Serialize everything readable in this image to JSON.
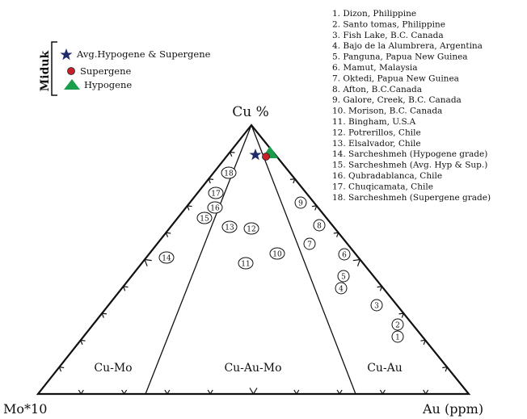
{
  "apex_labels": {
    "top": "Cu %",
    "bottom_left": "Mo*10",
    "bottom_right": "Au (ppm)"
  },
  "field_labels": [
    "Cu-Mo",
    "Cu-Au-Mo",
    "Cu-Au"
  ],
  "legend": {
    "title": "Miduk",
    "items": [
      {
        "label": "Avg.Hypogene & Supergene",
        "symbol": "star",
        "color": "#1f2a6b"
      },
      {
        "label": "Supergene",
        "symbol": "circle",
        "color": "#c8202a"
      },
      {
        "label": "Hypogene",
        "symbol": "triangle",
        "color": "#1a9e4b"
      }
    ]
  },
  "references": [
    "1. Dizon, Philippine",
    "2. Santo tomas, Philippine",
    "3. Fish Lake, B.C. Canada",
    "4. Bajo de la Alumbrera, Argentina",
    "5. Panguna, Papua New Guinea",
    "6. Mamut, Malaysia",
    "7. Oktedi, Papua New Guinea",
    "8. Afton, B.C.Canada",
    "9. Galore, Creek, B.C. Canada",
    "10. Morison, B.C. Canada",
    "11. Bingham, U.S.A",
    "12. Potrerillos, Chile",
    "13. Elsalvador, Chile",
    "14. Sarcheshmeh (Hypogene grade)",
    "15. Sarcheshmeh (Avg. Hyp & Sup.)",
    "16. Qubradablanca, Chile",
    "17. Chuqicamata, Chile",
    "18. Sarcheshmeh (Supergene grade)"
  ],
  "deposit_points": [
    "1",
    "2",
    "3",
    "4",
    "5",
    "6",
    "7",
    "8",
    "9",
    "10",
    "11",
    "12",
    "13",
    "14",
    "15",
    "16",
    "17",
    "18"
  ]
}
